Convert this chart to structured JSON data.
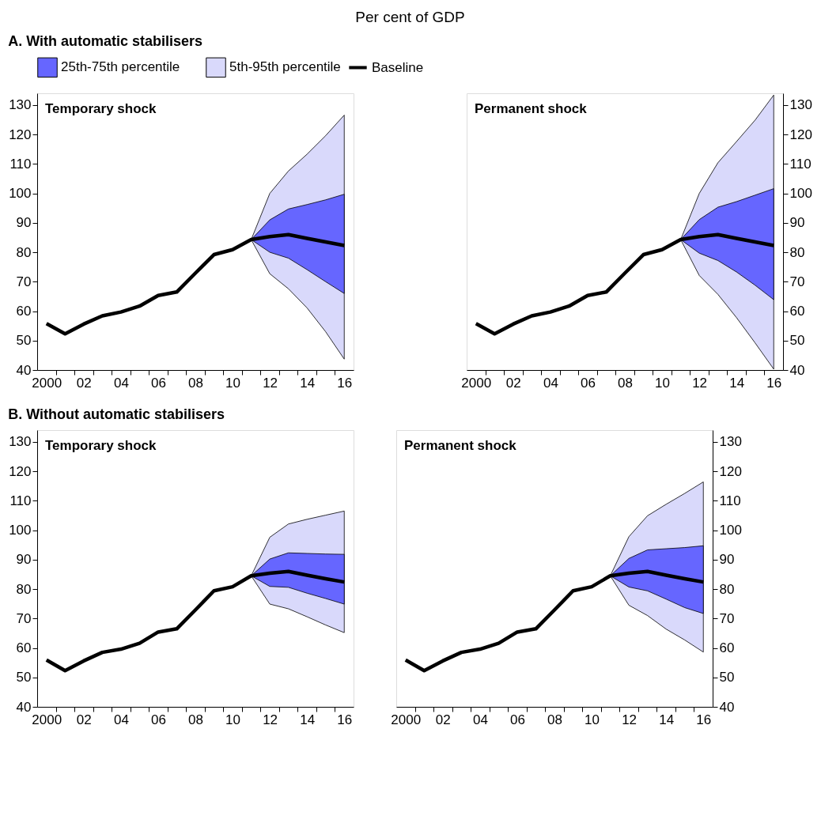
{
  "chart_data": [
    {
      "type": "line",
      "ylabel": "Per cent of GDP",
      "subtitle": "A. With automatic stabilisers",
      "title": "Temporary shock",
      "legend": "top",
      "x": [
        2000,
        2001,
        2002,
        2003,
        2004,
        2005,
        2006,
        2007,
        2008,
        2009,
        2010,
        2011,
        2012,
        2013,
        2014,
        2015,
        2016
      ],
      "xlim": [
        1999.5,
        2016.5
      ],
      "xticks": [
        {
          "value": 2000,
          "label": "2000"
        },
        {
          "value": 2002,
          "label": "02"
        },
        {
          "value": 2004,
          "label": "04"
        },
        {
          "value": 2006,
          "label": "06"
        },
        {
          "value": 2008,
          "label": "08"
        },
        {
          "value": 2010,
          "label": "10"
        },
        {
          "value": 2012,
          "label": "12"
        },
        {
          "value": 2014,
          "label": "14"
        },
        {
          "value": 2016,
          "label": "16"
        },
        {
          "value": 2000.5,
          "label": null
        },
        {
          "value": 2001.5,
          "label": null
        },
        {
          "value": 2002.5,
          "label": null
        },
        {
          "value": 2003.5,
          "label": null
        },
        {
          "value": 2004.5,
          "label": null
        },
        {
          "value": 2005.5,
          "label": null
        },
        {
          "value": 2006.5,
          "label": null
        },
        {
          "value": 2007.5,
          "label": null
        },
        {
          "value": 2008.5,
          "label": null
        },
        {
          "value": 2009.5,
          "label": null
        },
        {
          "value": 2010.5,
          "label": null
        },
        {
          "value": 2011.5,
          "label": null
        },
        {
          "value": 2012.5,
          "label": null
        },
        {
          "value": 2013.5,
          "label": null
        },
        {
          "value": 2014.5,
          "label": null
        },
        {
          "value": 2015.5,
          "label": null
        }
      ],
      "ylim": [
        40,
        134
      ],
      "yticks": [
        40,
        50,
        60,
        70,
        80,
        90,
        100,
        110,
        120,
        130
      ],
      "series": [
        {
          "name": "25th-75th percentile",
          "type": "area",
          "color": "#6666ff",
          "x": [
            2011,
            2012,
            2013,
            2014,
            2015,
            2016
          ],
          "lower": [
            84.3,
            80.0,
            78.0,
            74.1,
            70.0,
            66.0
          ],
          "values": [
            null,
            null,
            null,
            null,
            null,
            null
          ],
          "upper": [
            84.3,
            91.0,
            94.7,
            96.2,
            97.8,
            99.7
          ]
        },
        {
          "name": "5th-95th percentile",
          "type": "area",
          "color": "#d9d9fb",
          "x": [
            2011,
            2012,
            2013,
            2014,
            2015,
            2016
          ],
          "lower": [
            84.3,
            72.7,
            67.6,
            61.1,
            53.0,
            43.7
          ],
          "values": [
            null,
            null,
            null,
            null,
            null,
            null
          ],
          "upper": [
            84.3,
            100.0,
            107.6,
            113.3,
            119.6,
            126.6
          ]
        },
        {
          "name": "Baseline",
          "type": "line",
          "color": "#000000",
          "values": [
            55.8,
            52.3,
            55.6,
            58.4,
            59.7,
            61.7,
            65.3,
            66.5,
            72.9,
            79.2,
            80.9,
            84.3,
            85.3,
            86.0,
            84.7,
            83.5,
            82.3
          ]
        }
      ]
    },
    {
      "type": "line",
      "title": "Permanent shock",
      "x": [
        2000,
        2001,
        2002,
        2003,
        2004,
        2005,
        2006,
        2007,
        2008,
        2009,
        2010,
        2011,
        2012,
        2013,
        2014,
        2015,
        2016
      ],
      "xlim": [
        1999.5,
        2016.5
      ],
      "xticks": [
        {
          "value": 2000,
          "label": "2000"
        },
        {
          "value": 2002,
          "label": "02"
        },
        {
          "value": 2004,
          "label": "04"
        },
        {
          "value": 2006,
          "label": "06"
        },
        {
          "value": 2008,
          "label": "08"
        },
        {
          "value": 2010,
          "label": "10"
        },
        {
          "value": 2012,
          "label": "12"
        },
        {
          "value": 2014,
          "label": "14"
        },
        {
          "value": 2016,
          "label": "16"
        },
        {
          "value": 2000.5,
          "label": null
        },
        {
          "value": 2001.5,
          "label": null
        },
        {
          "value": 2002.5,
          "label": null
        },
        {
          "value": 2003.5,
          "label": null
        },
        {
          "value": 2004.5,
          "label": null
        },
        {
          "value": 2005.5,
          "label": null
        },
        {
          "value": 2006.5,
          "label": null
        },
        {
          "value": 2007.5,
          "label": null
        },
        {
          "value": 2008.5,
          "label": null
        },
        {
          "value": 2009.5,
          "label": null
        },
        {
          "value": 2010.5,
          "label": null
        },
        {
          "value": 2011.5,
          "label": null
        },
        {
          "value": 2012.5,
          "label": null
        },
        {
          "value": 2013.5,
          "label": null
        },
        {
          "value": 2014.5,
          "label": null
        },
        {
          "value": 2015.5,
          "label": null
        }
      ],
      "ylim": [
        40,
        134
      ],
      "yticks": [
        40,
        50,
        60,
        70,
        80,
        90,
        100,
        110,
        120,
        130
      ],
      "series": [
        {
          "type": "area",
          "color": "#6666ff",
          "x": [
            2011,
            2012,
            2013,
            2014,
            2015,
            2016
          ],
          "lower": [
            84.3,
            79.7,
            77.2,
            73.3,
            68.8,
            63.9
          ],
          "values": [
            null,
            null,
            null,
            null,
            null,
            null
          ],
          "upper": [
            84.3,
            91.1,
            95.3,
            97.2,
            99.4,
            101.6
          ]
        },
        {
          "type": "area",
          "color": "#d9d9fb",
          "x": [
            2011,
            2012,
            2013,
            2014,
            2015,
            2016
          ],
          "lower": [
            84.3,
            72.1,
            65.7,
            57.8,
            49.2,
            40.3
          ],
          "values": [
            null,
            null,
            null,
            null,
            null,
            null
          ],
          "upper": [
            84.3,
            100.0,
            110.4,
            117.6,
            124.9,
            133.4
          ]
        },
        {
          "type": "line",
          "color": "#000000",
          "values": [
            55.8,
            52.3,
            55.6,
            58.4,
            59.7,
            61.7,
            65.3,
            66.5,
            72.9,
            79.2,
            80.9,
            84.3,
            85.3,
            86.0,
            84.7,
            83.5,
            82.3
          ]
        }
      ]
    },
    {
      "type": "line",
      "subtitle": "B. Without automatic stabilisers",
      "title": "Temporary shock",
      "x": [
        2000,
        2001,
        2002,
        2003,
        2004,
        2005,
        2006,
        2007,
        2008,
        2009,
        2010,
        2011,
        2012,
        2013,
        2014,
        2015,
        2016
      ],
      "xlim": [
        1999.5,
        2016.5
      ],
      "xticks": [
        {
          "value": 2000,
          "label": "2000"
        },
        {
          "value": 2002,
          "label": "02"
        },
        {
          "value": 2004,
          "label": "04"
        },
        {
          "value": 2006,
          "label": "06"
        },
        {
          "value": 2008,
          "label": "08"
        },
        {
          "value": 2010,
          "label": "10"
        },
        {
          "value": 2012,
          "label": "12"
        },
        {
          "value": 2014,
          "label": "14"
        },
        {
          "value": 2016,
          "label": "16"
        },
        {
          "value": 2000.5,
          "label": null
        },
        {
          "value": 2001.5,
          "label": null
        },
        {
          "value": 2002.5,
          "label": null
        },
        {
          "value": 2003.5,
          "label": null
        },
        {
          "value": 2004.5,
          "label": null
        },
        {
          "value": 2005.5,
          "label": null
        },
        {
          "value": 2006.5,
          "label": null
        },
        {
          "value": 2007.5,
          "label": null
        },
        {
          "value": 2008.5,
          "label": null
        },
        {
          "value": 2009.5,
          "label": null
        },
        {
          "value": 2010.5,
          "label": null
        },
        {
          "value": 2011.5,
          "label": null
        },
        {
          "value": 2012.5,
          "label": null
        },
        {
          "value": 2013.5,
          "label": null
        },
        {
          "value": 2014.5,
          "label": null
        },
        {
          "value": 2015.5,
          "label": null
        }
      ],
      "ylim": [
        40,
        134
      ],
      "yticks": [
        40,
        50,
        60,
        70,
        80,
        90,
        100,
        110,
        120,
        130
      ],
      "series": [
        {
          "type": "area",
          "color": "#6666ff",
          "x": [
            2011,
            2012,
            2013,
            2014,
            2015,
            2016
          ],
          "lower": [
            84.5,
            80.9,
            80.6,
            78.6,
            76.8,
            74.9
          ],
          "values": [
            null,
            null,
            null,
            null,
            null,
            null
          ],
          "upper": [
            84.5,
            90.2,
            92.3,
            92.1,
            91.9,
            91.8
          ]
        },
        {
          "type": "area",
          "color": "#d9d9fb",
          "x": [
            2011,
            2012,
            2013,
            2014,
            2015,
            2016
          ],
          "lower": [
            84.5,
            74.9,
            73.3,
            70.6,
            67.8,
            65.2
          ],
          "values": [
            null,
            null,
            null,
            null,
            null,
            null
          ],
          "upper": [
            84.5,
            97.6,
            102.1,
            103.7,
            105.1,
            106.5
          ]
        },
        {
          "type": "line",
          "color": "#000000",
          "values": [
            55.9,
            52.3,
            55.6,
            58.5,
            59.6,
            61.6,
            65.4,
            66.5,
            72.9,
            79.4,
            80.8,
            84.5,
            85.4,
            86.0,
            84.7,
            83.5,
            82.4
          ]
        }
      ]
    },
    {
      "type": "line",
      "title": "Permanent shock",
      "x": [
        2000,
        2001,
        2002,
        2003,
        2004,
        2005,
        2006,
        2007,
        2008,
        2009,
        2010,
        2011,
        2012,
        2013,
        2014,
        2015,
        2016
      ],
      "xlim": [
        1999.5,
        2016.5
      ],
      "xticks": [
        {
          "value": 2000,
          "label": "2000"
        },
        {
          "value": 2002,
          "label": "02"
        },
        {
          "value": 2004,
          "label": "04"
        },
        {
          "value": 2006,
          "label": "06"
        },
        {
          "value": 2008,
          "label": "08"
        },
        {
          "value": 2010,
          "label": "10"
        },
        {
          "value": 2012,
          "label": "12"
        },
        {
          "value": 2014,
          "label": "14"
        },
        {
          "value": 2016,
          "label": "16"
        },
        {
          "value": 2000.5,
          "label": null
        },
        {
          "value": 2001.5,
          "label": null
        },
        {
          "value": 2002.5,
          "label": null
        },
        {
          "value": 2003.5,
          "label": null
        },
        {
          "value": 2004.5,
          "label": null
        },
        {
          "value": 2005.5,
          "label": null
        },
        {
          "value": 2006.5,
          "label": null
        },
        {
          "value": 2007.5,
          "label": null
        },
        {
          "value": 2008.5,
          "label": null
        },
        {
          "value": 2009.5,
          "label": null
        },
        {
          "value": 2010.5,
          "label": null
        },
        {
          "value": 2011.5,
          "label": null
        },
        {
          "value": 2012.5,
          "label": null
        },
        {
          "value": 2013.5,
          "label": null
        },
        {
          "value": 2014.5,
          "label": null
        },
        {
          "value": 2015.5,
          "label": null
        }
      ],
      "ylim": [
        40,
        134
      ],
      "yticks": [
        40,
        50,
        60,
        70,
        80,
        90,
        100,
        110,
        120,
        130
      ],
      "series": [
        {
          "type": "area",
          "color": "#6666ff",
          "x": [
            2011,
            2012,
            2013,
            2014,
            2015,
            2016
          ],
          "lower": [
            84.5,
            80.7,
            79.4,
            76.6,
            73.7,
            71.7
          ],
          "values": [
            null,
            null,
            null,
            null,
            null,
            null
          ],
          "upper": [
            84.5,
            90.4,
            93.3,
            93.7,
            94.1,
            94.7
          ]
        },
        {
          "type": "area",
          "color": "#d9d9fb",
          "x": [
            2011,
            2012,
            2013,
            2014,
            2015,
            2016
          ],
          "lower": [
            84.5,
            74.5,
            71.0,
            66.4,
            62.7,
            58.6
          ],
          "values": [
            null,
            null,
            null,
            null,
            null,
            null
          ],
          "upper": [
            84.5,
            97.8,
            104.9,
            108.8,
            112.5,
            116.4
          ]
        },
        {
          "type": "line",
          "color": "#000000",
          "values": [
            55.9,
            52.3,
            55.6,
            58.5,
            59.6,
            61.6,
            65.4,
            66.5,
            72.9,
            79.4,
            80.8,
            84.5,
            85.4,
            86.0,
            84.7,
            83.5,
            82.4
          ]
        }
      ]
    }
  ]
}
